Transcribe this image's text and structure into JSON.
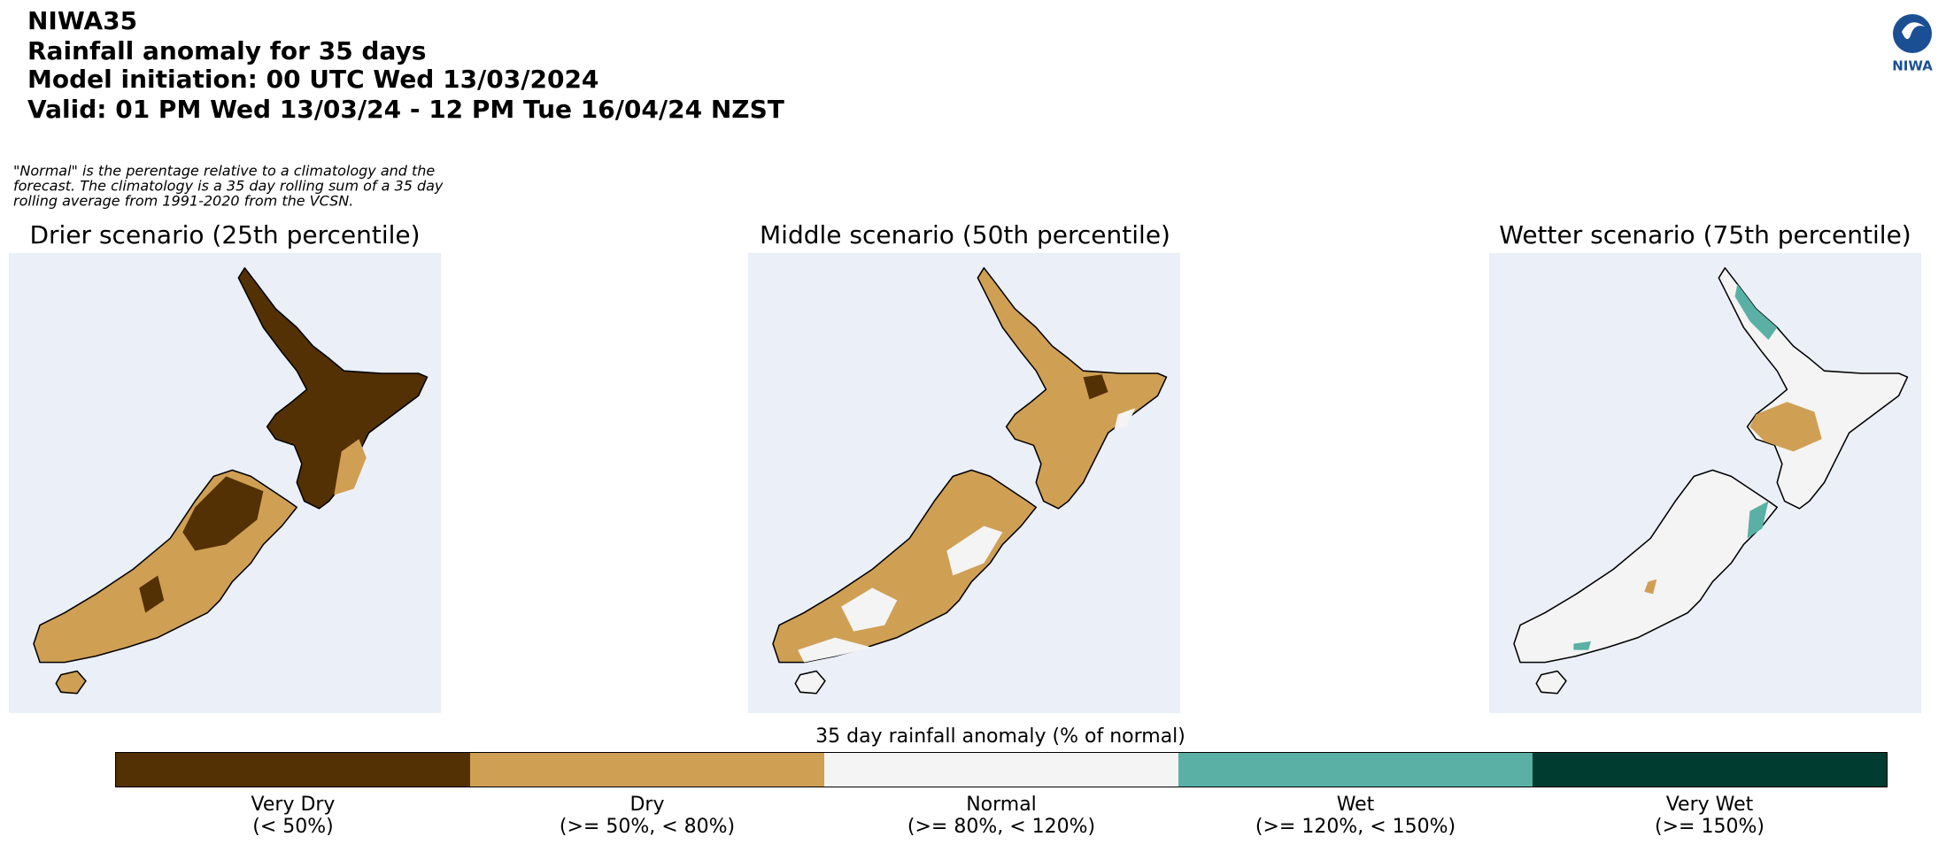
{
  "header": {
    "lines": [
      "NIWA35",
      "Rainfall anomaly for 35 days",
      "Model initiation: 00 UTC Wed 13/03/2024",
      "Valid: 01 PM Wed 13/03/24 - 12 PM Tue 16/04/24 NZST"
    ]
  },
  "logo": "NIWA",
  "note": [
    "\"Normal\" is the perentage relative to a climatology and the",
    "forecast. The climatology is a 35 day rolling sum of a 35 day",
    "rolling average from 1991-2020 from the VCSN."
  ],
  "panels": [
    {
      "title": "Drier scenario (25th percentile)"
    },
    {
      "title": "Middle scenario (50th percentile)"
    },
    {
      "title": "Wetter scenario (75th percentile)"
    }
  ],
  "legend": {
    "title": "35 day rainfall anomaly (% of normal)",
    "items": [
      {
        "label": "Very Dry",
        "range": "(< 50%)",
        "color": "#543005"
      },
      {
        "label": "Dry",
        "range": "(>= 50%, < 80%)",
        "color": "#cf9f54"
      },
      {
        "label": "Normal",
        "range": "(>= 80%, < 120%)",
        "color": "#f3f4f3"
      },
      {
        "label": "Wet",
        "range": "(>= 120%, < 150%)",
        "color": "#5ab0a5"
      },
      {
        "label": "Very Wet",
        "range": "(>= 150%)",
        "color": "#003c30"
      }
    ]
  }
}
